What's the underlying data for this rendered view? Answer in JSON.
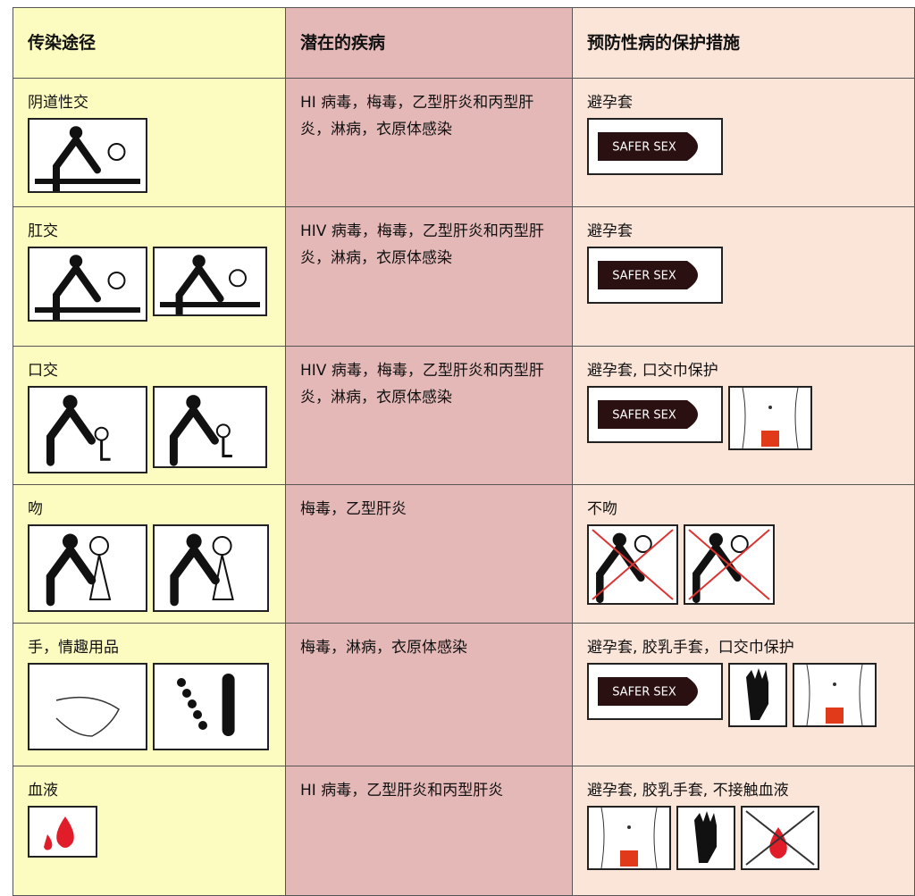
{
  "table": {
    "headers": [
      "传染途径",
      "潜在的疾病",
      "预防性病的保护措施"
    ],
    "rows": [
      [
        "阴道性交",
        "HI 病毒，梅毒，乙型肝炎和丙型肝炎，淋病，衣原体感染",
        "避孕套"
      ],
      [
        "肛交",
        "HIV 病毒，梅毒，乙型肝炎和丙型肝炎，淋病，衣原体感染",
        "避孕套"
      ],
      [
        "口交",
        "HIV 病毒，梅毒，乙型肝炎和丙型肝炎，淋病，衣原体感染",
        "避孕套, 口交巾保护"
      ],
      [
        "吻",
        "梅毒，乙型肝炎",
        "不吻"
      ],
      [
        "手，情趣用品",
        "梅毒，淋病，衣原体感染",
        "避孕套, 胶乳手套，口交巾保护"
      ],
      [
        "血液",
        "HI 病毒，乙型肝炎和丙型肝炎",
        "避孕套, 胶乳手套, 不接触血液"
      ]
    ],
    "condom_label": "SAFER SEX"
  }
}
